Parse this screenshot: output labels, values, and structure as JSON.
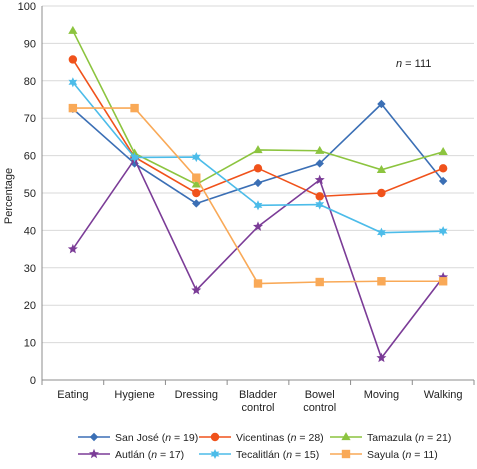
{
  "chart_data": {
    "type": "line",
    "title": "",
    "xlabel": "",
    "ylabel": "Percentage",
    "ylim": [
      0,
      100
    ],
    "yticks": [
      "0",
      "10",
      "20",
      "30",
      "40",
      "50",
      "60",
      "70",
      "80",
      "90",
      "100"
    ],
    "categories": [
      [
        "Eating"
      ],
      [
        "Hygiene"
      ],
      [
        "Dressing"
      ],
      [
        "Bladder",
        "control"
      ],
      [
        "Bowel",
        "control"
      ],
      [
        "Moving"
      ],
      [
        "Walking"
      ]
    ],
    "annotation": {
      "prefix": "n",
      "suffix": " = 111"
    },
    "legend": {
      "placement": "bottom"
    },
    "series": [
      {
        "name": "San José",
        "n": "19",
        "color": "#3b6fb5",
        "marker": "diamond",
        "values": [
          72.5,
          57.9,
          47.2,
          52.7,
          57.9,
          73.8,
          53.2
        ]
      },
      {
        "name": "Vicentinas",
        "n": "28",
        "color": "#f0521b",
        "marker": "circle",
        "values": [
          85.7,
          59.6,
          50.0,
          56.6,
          49.1,
          50.0,
          56.6
        ]
      },
      {
        "name": "Tamazula",
        "n": "21",
        "color": "#8cc43f",
        "marker": "triangle",
        "values": [
          93.4,
          60.6,
          52.3,
          61.5,
          61.3,
          56.2,
          61.0
        ]
      },
      {
        "name": "Autlán",
        "n": "17",
        "color": "#7b3c97",
        "marker": "star",
        "values": [
          35.0,
          59.0,
          24.0,
          41.0,
          53.5,
          5.9,
          27.5
        ]
      },
      {
        "name": "Tecalitlán",
        "n": "15",
        "color": "#4cbce9",
        "marker": "asterisk",
        "values": [
          79.6,
          59.5,
          59.6,
          46.7,
          46.9,
          39.4,
          39.8
        ]
      },
      {
        "name": "Sayula",
        "n": "11",
        "color": "#f9a957",
        "marker": "square",
        "values": [
          72.7,
          72.7,
          54.1,
          25.8,
          26.2,
          26.4,
          26.4
        ]
      }
    ]
  }
}
